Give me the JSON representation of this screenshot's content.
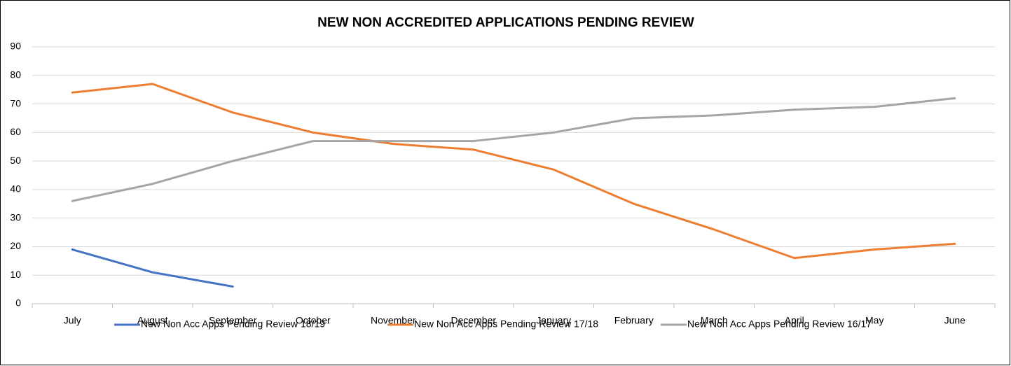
{
  "chart_data": {
    "type": "line",
    "title": "NEW NON ACCREDITED APPLICATIONS PENDING REVIEW",
    "categories": [
      "July",
      "August",
      "September",
      "October",
      "November",
      "December",
      "January",
      "February",
      "March",
      "April",
      "May",
      "June"
    ],
    "series": [
      {
        "name": "New Non Acc Apps Pending Review 18/19",
        "color": "#4472c4",
        "values": [
          19,
          11,
          6,
          null,
          null,
          null,
          null,
          null,
          null,
          null,
          null,
          null
        ]
      },
      {
        "name": "New Non Acc Apps Pending Review 17/18",
        "color": "#ed7d31",
        "values": [
          74,
          77,
          67,
          60,
          56,
          54,
          47,
          35,
          26,
          16,
          19,
          21
        ]
      },
      {
        "name": "New Non Acc Apps Pending Review 16/17",
        "color": "#a5a5a5",
        "values": [
          36,
          42,
          50,
          57,
          57,
          57,
          60,
          65,
          66,
          68,
          69,
          72
        ]
      }
    ],
    "ylim": [
      0,
      90
    ],
    "yticks": [
      0,
      10,
      20,
      30,
      40,
      50,
      60,
      70,
      80,
      90
    ],
    "grid": true,
    "legend": "bottom"
  }
}
